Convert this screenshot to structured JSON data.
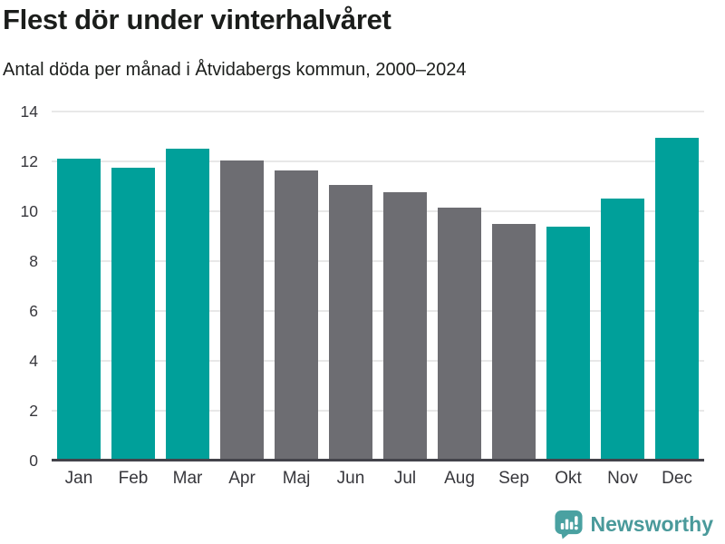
{
  "header": {
    "title": "Flest dör under vinterhalvåret",
    "subtitle": "Antal döda per månad i Åtvidabergs kommun, 2000–2024"
  },
  "chart_data": {
    "type": "bar",
    "title": "Flest dör under vinterhalvåret",
    "subtitle": "Antal döda per månad i Åtvidabergs kommun, 2000–2024",
    "categories": [
      "Jan",
      "Feb",
      "Mar",
      "Apr",
      "Maj",
      "Jun",
      "Jul",
      "Aug",
      "Sep",
      "Okt",
      "Nov",
      "Dec"
    ],
    "values": [
      12.1,
      11.75,
      12.5,
      12.05,
      11.65,
      11.05,
      10.75,
      10.15,
      9.5,
      9.4,
      10.5,
      12.95
    ],
    "highlighted_categories": [
      "Jan",
      "Feb",
      "Mar",
      "Okt",
      "Nov",
      "Dec"
    ],
    "colors": {
      "highlight": "#00a09a",
      "default": "#6d6d72"
    },
    "xlabel": "",
    "ylabel": "",
    "ylim": [
      0,
      14
    ],
    "yticks": [
      0,
      2,
      4,
      6,
      8,
      10,
      12,
      14
    ],
    "grid": true,
    "legend": false
  },
  "footer": {
    "brand": "Newsworthy",
    "brand_color": "#4a9a9b",
    "logo_color": "#4aa1a1",
    "logo_icon": "bar-chart-speech-bubble-icon"
  }
}
